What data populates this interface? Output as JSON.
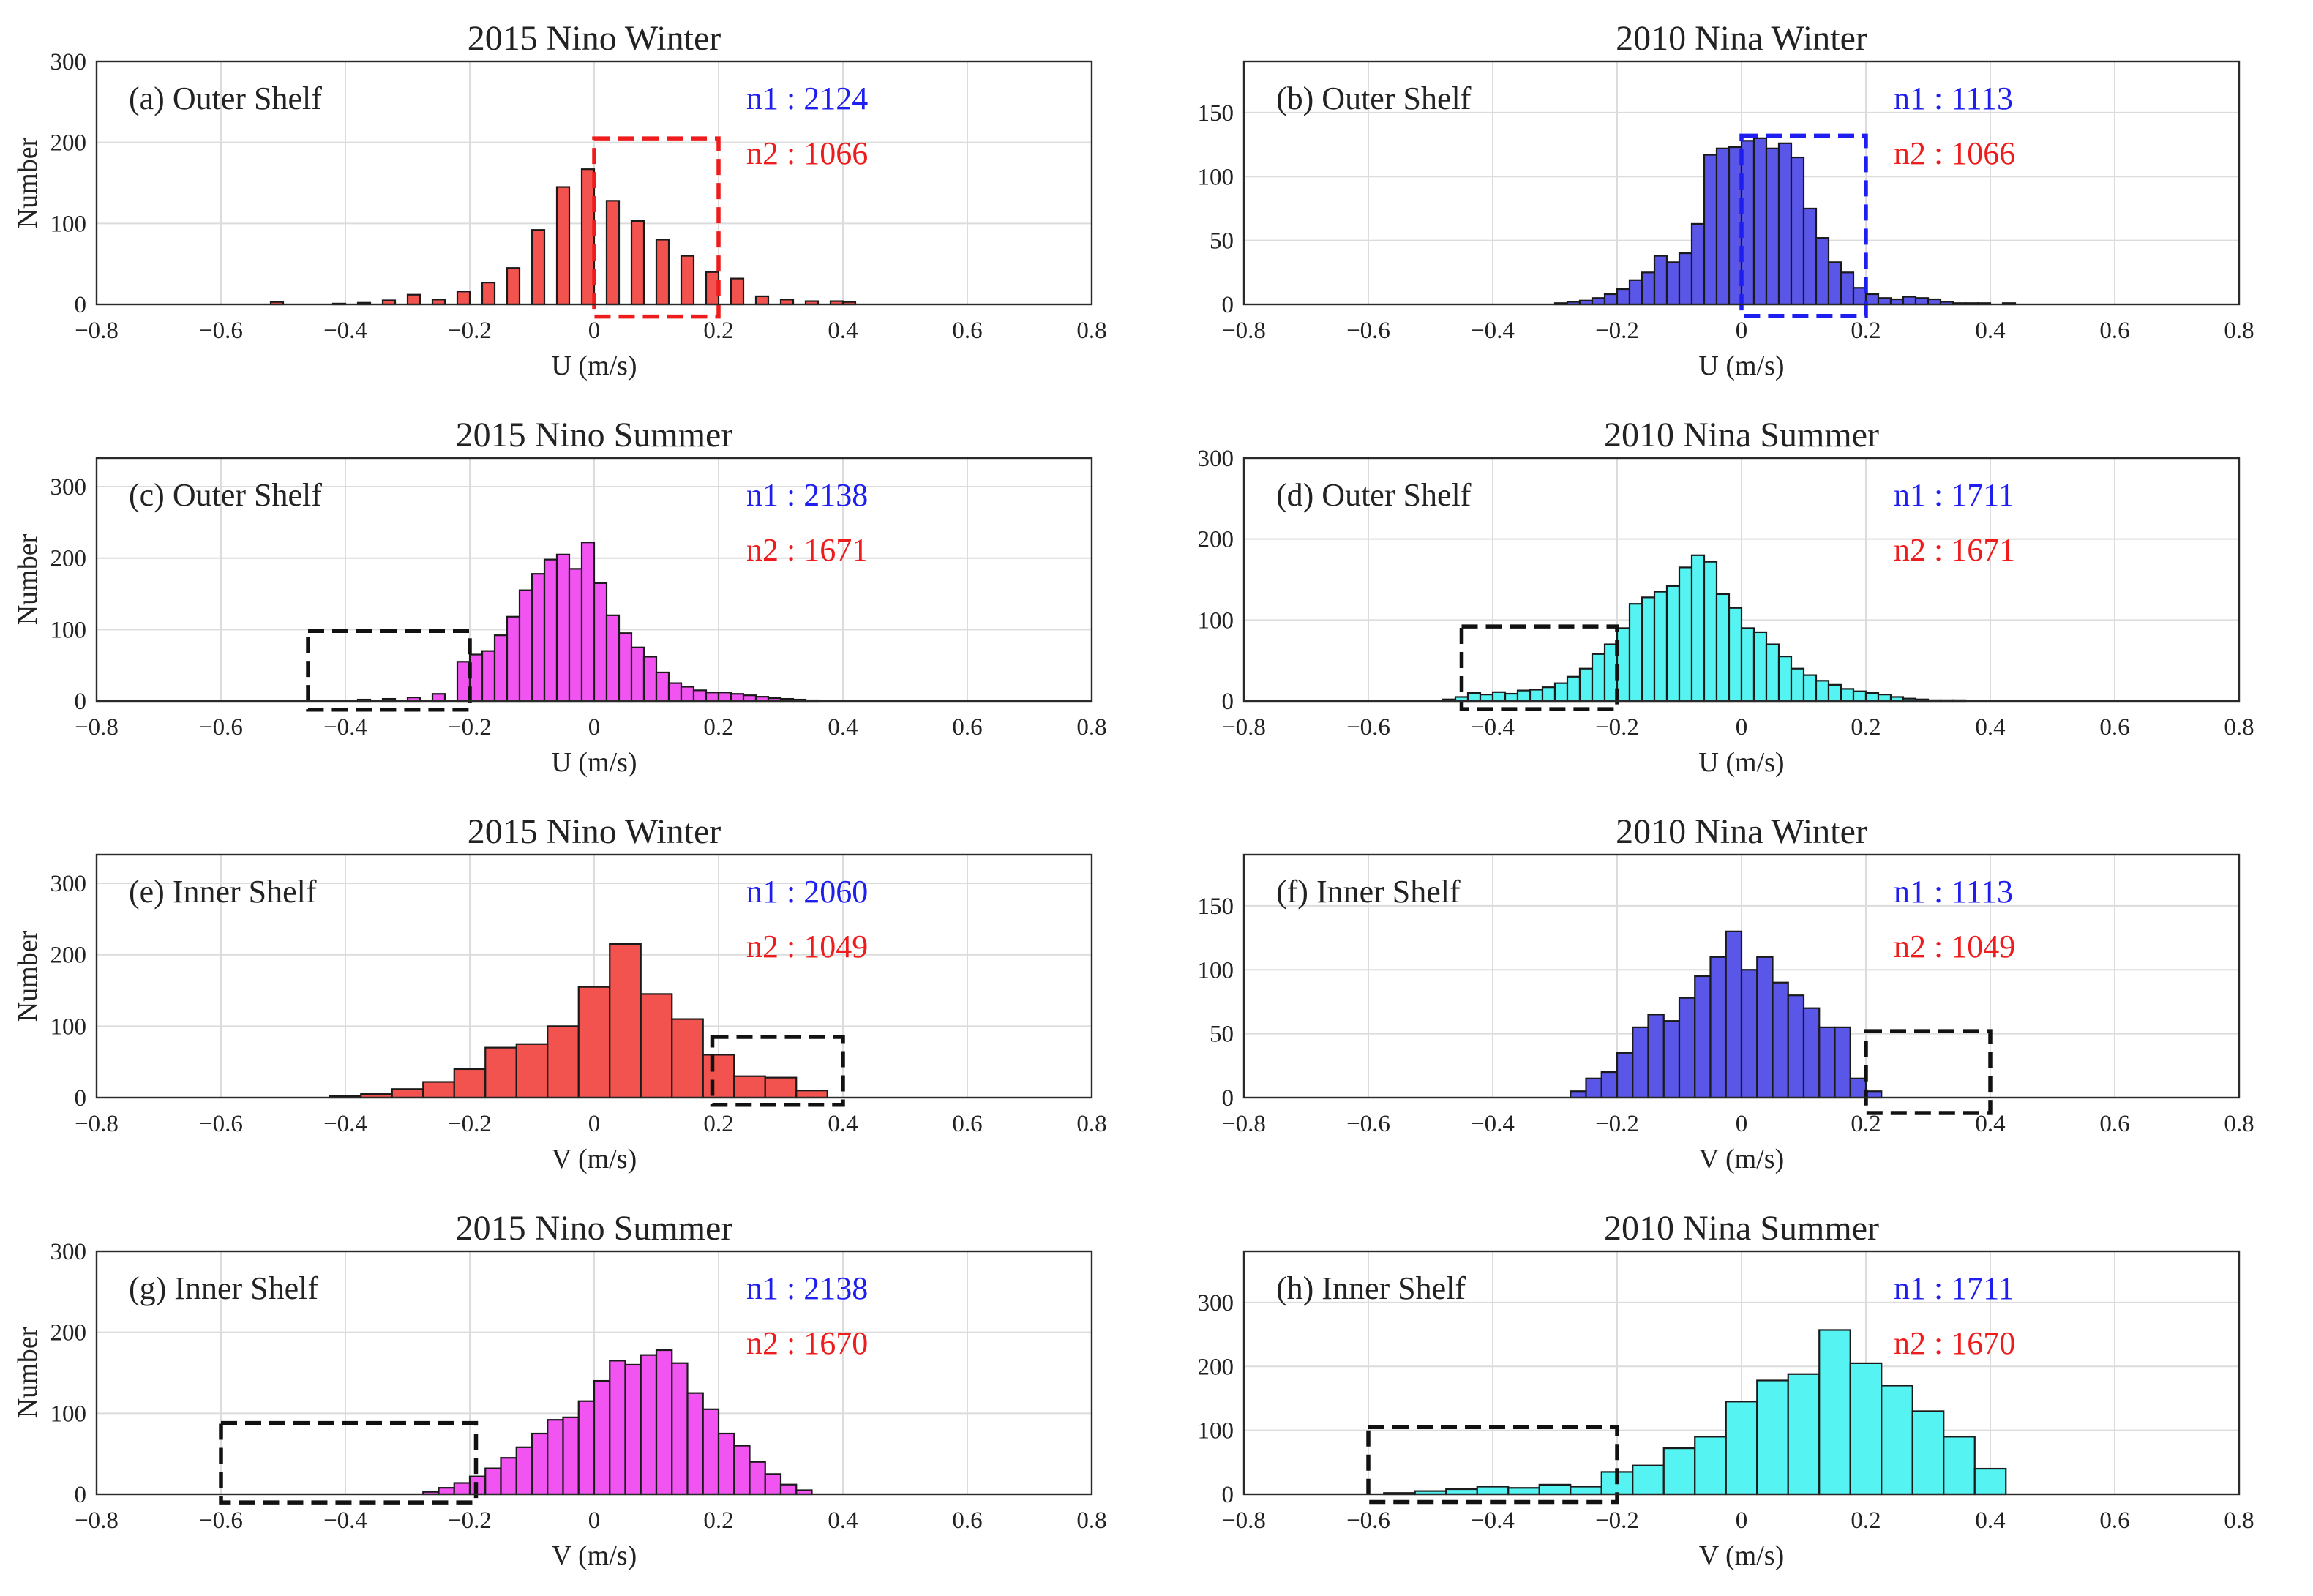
{
  "colors": {
    "nino_winter": "#f2534f",
    "nina_winter": "#5a56e8",
    "nino_summer": "#f254f2",
    "nina_summer": "#55f4f2",
    "n1_text": "#1e1ef0",
    "n2_text": "#ee1c1c",
    "box_red": "#ee1c1c",
    "box_blue": "#1e1ef0",
    "box_black": "#111111"
  },
  "chart_data": [
    {
      "type": "bar",
      "id": "a",
      "title": "2015 Nino Winter",
      "label": "(a)  Outer Shelf",
      "n1": "n1 : 2124",
      "n2": "n2 : 1066",
      "xlabel": "U (m/s)",
      "ylabel": "Number",
      "xlim": [
        -0.8,
        0.8
      ],
      "ylim": [
        0,
        300
      ],
      "xticks": [
        "−0.8",
        "−0.6",
        "−0.4",
        "−0.2",
        "0",
        "0.2",
        "0.4",
        "0.6",
        "0.8"
      ],
      "yticks": [
        "0",
        "100",
        "200",
        "300"
      ],
      "color_key": "nino_winter",
      "bin_width": 0.02,
      "bin_centers": [
        -0.51,
        -0.41,
        -0.37,
        -0.33,
        -0.29,
        -0.25,
        -0.21,
        -0.17,
        -0.13,
        -0.09,
        -0.05,
        -0.01,
        0.03,
        0.07,
        0.11,
        0.15,
        0.19,
        0.23,
        0.27,
        0.31,
        0.35,
        0.39,
        0.41
      ],
      "values": [
        3,
        1,
        2,
        5,
        12,
        6,
        16,
        27,
        45,
        92,
        145,
        167,
        128,
        103,
        80,
        60,
        40,
        32,
        10,
        6,
        4,
        4,
        3
      ],
      "region": {
        "x": [
          0.0,
          0.2
        ],
        "y": [
          -15,
          205
        ],
        "color_key": "box_red"
      }
    },
    {
      "type": "bar",
      "id": "b",
      "title": "2010 Nina Winter",
      "label": "(b)  Outer Shelf",
      "n1": "n1 : 1113",
      "n2": "n2 : 1066",
      "xlabel": "U (m/s)",
      "ylabel": "",
      "xlim": [
        -0.8,
        0.8
      ],
      "ylim": [
        0,
        190
      ],
      "xticks": [
        "−0.8",
        "−0.6",
        "−0.4",
        "−0.2",
        "0",
        "0.2",
        "0.4",
        "0.6",
        "0.8"
      ],
      "yticks": [
        "0",
        "50",
        "100",
        "150"
      ],
      "color_key": "nina_winter",
      "bin_width": 0.02,
      "bin_centers": [
        -0.29,
        -0.27,
        -0.25,
        -0.23,
        -0.21,
        -0.19,
        -0.17,
        -0.15,
        -0.13,
        -0.11,
        -0.09,
        -0.07,
        -0.05,
        -0.03,
        -0.01,
        0.01,
        0.03,
        0.05,
        0.07,
        0.09,
        0.11,
        0.13,
        0.15,
        0.17,
        0.19,
        0.21,
        0.23,
        0.25,
        0.27,
        0.29,
        0.31,
        0.33,
        0.35,
        0.37,
        0.39,
        0.41,
        0.43
      ],
      "values": [
        1,
        2,
        3,
        5,
        8,
        12,
        19,
        25,
        38,
        33,
        40,
        63,
        117,
        122,
        123,
        128,
        130,
        122,
        126,
        115,
        75,
        52,
        33,
        25,
        13,
        8,
        5,
        4,
        6,
        5,
        4,
        2,
        1,
        1,
        1,
        0,
        1
      ],
      "region": {
        "x": [
          0.0,
          0.2
        ],
        "y": [
          -9,
          132
        ],
        "color_key": "box_blue"
      }
    },
    {
      "type": "bar",
      "id": "c",
      "title": "2015 Nino Summer",
      "label": "(c)  Outer Shelf",
      "n1": "n1 : 2138",
      "n2": "n2 : 1671",
      "xlabel": "U (m/s)",
      "ylabel": "Number",
      "xlim": [
        -0.8,
        0.8
      ],
      "ylim": [
        0,
        340
      ],
      "xticks": [
        "−0.8",
        "−0.6",
        "−0.4",
        "−0.2",
        "0",
        "0.2",
        "0.4",
        "0.6",
        "0.8"
      ],
      "yticks": [
        "0",
        "100",
        "200",
        "300"
      ],
      "color_key": "nino_summer",
      "bin_width": 0.02,
      "bin_centers": [
        -0.37,
        -0.33,
        -0.29,
        -0.25,
        -0.21,
        -0.19,
        -0.17,
        -0.15,
        -0.13,
        -0.11,
        -0.09,
        -0.07,
        -0.05,
        -0.03,
        -0.01,
        0.01,
        0.03,
        0.05,
        0.07,
        0.09,
        0.11,
        0.13,
        0.15,
        0.17,
        0.19,
        0.21,
        0.23,
        0.25,
        0.27,
        0.29,
        0.31,
        0.33,
        0.35
      ],
      "values": [
        2,
        3,
        5,
        10,
        55,
        65,
        70,
        92,
        118,
        155,
        178,
        198,
        205,
        185,
        222,
        165,
        120,
        95,
        75,
        62,
        40,
        25,
        20,
        15,
        12,
        12,
        10,
        8,
        6,
        4,
        3,
        2,
        1
      ],
      "region": {
        "x": [
          -0.46,
          -0.2
        ],
        "y": [
          -12,
          98
        ],
        "color_key": "box_black"
      }
    },
    {
      "type": "bar",
      "id": "d",
      "title": "2010 Nina Summer",
      "label": "(d)  Outer Shelf",
      "n1": "n1 : 1711",
      "n2": "n2 : 1671",
      "xlabel": "U (m/s)",
      "ylabel": "",
      "xlim": [
        -0.8,
        0.8
      ],
      "ylim": [
        0,
        300
      ],
      "xticks": [
        "−0.8",
        "−0.6",
        "−0.4",
        "−0.2",
        "0",
        "0.2",
        "0.4",
        "0.6",
        "0.8"
      ],
      "yticks": [
        "0",
        "100",
        "200",
        "300"
      ],
      "color_key": "nina_summer",
      "bin_width": 0.02,
      "bin_centers": [
        -0.47,
        -0.45,
        -0.43,
        -0.41,
        -0.39,
        -0.37,
        -0.35,
        -0.33,
        -0.31,
        -0.29,
        -0.27,
        -0.25,
        -0.23,
        -0.21,
        -0.19,
        -0.17,
        -0.15,
        -0.13,
        -0.11,
        -0.09,
        -0.07,
        -0.05,
        -0.03,
        -0.01,
        0.01,
        0.03,
        0.05,
        0.07,
        0.09,
        0.11,
        0.13,
        0.15,
        0.17,
        0.19,
        0.21,
        0.23,
        0.25,
        0.27,
        0.29,
        0.31,
        0.33,
        0.35
      ],
      "values": [
        2,
        5,
        10,
        8,
        11,
        9,
        13,
        14,
        17,
        22,
        30,
        40,
        58,
        70,
        90,
        120,
        128,
        135,
        142,
        165,
        180,
        172,
        132,
        115,
        90,
        85,
        70,
        55,
        40,
        32,
        25,
        20,
        15,
        12,
        10,
        8,
        5,
        3,
        2,
        1,
        1,
        1
      ],
      "region": {
        "x": [
          -0.45,
          -0.2
        ],
        "y": [
          -10,
          92
        ],
        "color_key": "box_black"
      }
    },
    {
      "type": "bar",
      "id": "e",
      "title": "2015 Nino Winter",
      "label": "(e)  Inner Shelf",
      "n1": "n1 : 2060",
      "n2": "n2 : 1049",
      "xlabel": "V (m/s)",
      "ylabel": "Number",
      "xlim": [
        -0.8,
        0.8
      ],
      "ylim": [
        0,
        340
      ],
      "xticks": [
        "−0.8",
        "−0.6",
        "−0.4",
        "−0.2",
        "0",
        "0.2",
        "0.4",
        "0.6",
        "0.8"
      ],
      "yticks": [
        "0",
        "100",
        "200",
        "300"
      ],
      "color_key": "nino_winter",
      "bin_width": 0.05,
      "bin_centers": [
        -0.4,
        -0.35,
        -0.3,
        -0.25,
        -0.2,
        -0.15,
        -0.1,
        -0.05,
        0.0,
        0.05,
        0.1,
        0.15,
        0.2,
        0.25,
        0.3,
        0.35
      ],
      "values": [
        2,
        5,
        12,
        22,
        40,
        70,
        75,
        100,
        155,
        215,
        145,
        110,
        60,
        30,
        28,
        10
      ],
      "region": {
        "x": [
          0.19,
          0.4
        ],
        "y": [
          -10,
          85
        ],
        "color_key": "box_black"
      }
    },
    {
      "type": "bar",
      "id": "f",
      "title": "2010 Nina Winter",
      "label": "(f)  Inner Shelf",
      "n1": "n1 : 1113",
      "n2": "n2 : 1049",
      "xlabel": "V (m/s)",
      "ylabel": "",
      "xlim": [
        -0.8,
        0.8
      ],
      "ylim": [
        0,
        190
      ],
      "xticks": [
        "−0.8",
        "−0.6",
        "−0.4",
        "−0.2",
        "0",
        "0.2",
        "0.4",
        "0.6",
        "0.8"
      ],
      "yticks": [
        "0",
        "50",
        "100",
        "150"
      ],
      "color_key": "nina_winter",
      "bin_width": 0.025,
      "bin_centers": [
        -0.2625,
        -0.2375,
        -0.2125,
        -0.1875,
        -0.1625,
        -0.1375,
        -0.1125,
        -0.0875,
        -0.0625,
        -0.0375,
        -0.0125,
        0.0125,
        0.0375,
        0.0625,
        0.0875,
        0.1125,
        0.1375,
        0.1625,
        0.1875,
        0.2125
      ],
      "values": [
        5,
        15,
        20,
        35,
        55,
        65,
        60,
        78,
        95,
        110,
        130,
        100,
        110,
        90,
        80,
        70,
        55,
        55,
        15,
        5
      ],
      "region": {
        "x": [
          0.2,
          0.4
        ],
        "y": [
          -12,
          52
        ],
        "color_key": "box_black"
      }
    },
    {
      "type": "bar",
      "id": "g",
      "title": "2015 Nino Summer",
      "label": "(g)  Inner Shelf",
      "n1": "n1 : 2138",
      "n2": "n2 : 1670",
      "xlabel": "V (m/s)",
      "ylabel": "Number",
      "xlim": [
        -0.8,
        0.8
      ],
      "ylim": [
        0,
        300
      ],
      "xticks": [
        "−0.8",
        "−0.6",
        "−0.4",
        "−0.2",
        "0",
        "0.2",
        "0.4",
        "0.6",
        "0.8"
      ],
      "yticks": [
        "0",
        "100",
        "200",
        "300"
      ],
      "color_key": "nino_summer",
      "bin_width": 0.025,
      "bin_centers": [
        -0.2625,
        -0.2375,
        -0.2125,
        -0.1875,
        -0.1625,
        -0.1375,
        -0.1125,
        -0.0875,
        -0.0625,
        -0.0375,
        -0.0125,
        0.0125,
        0.0375,
        0.0625,
        0.0875,
        0.1125,
        0.1375,
        0.1625,
        0.1875,
        0.2125,
        0.2375,
        0.2625,
        0.2875,
        0.3125,
        0.3375
      ],
      "values": [
        3,
        8,
        14,
        22,
        32,
        45,
        58,
        75,
        92,
        95,
        115,
        140,
        165,
        160,
        172,
        178,
        162,
        125,
        105,
        75,
        60,
        40,
        25,
        12,
        5
      ],
      "region": {
        "x": [
          -0.6,
          -0.19
        ],
        "y": [
          -10,
          88
        ],
        "color_key": "box_black"
      }
    },
    {
      "type": "bar",
      "id": "h",
      "title": "2010 Nina Summer",
      "label": "(h)  Inner Shelf",
      "n1": "n1 : 1711",
      "n2": "n2 : 1670",
      "xlabel": "V (m/s)",
      "ylabel": "",
      "xlim": [
        -0.8,
        0.8
      ],
      "ylim": [
        0,
        380
      ],
      "xticks": [
        "−0.8",
        "−0.6",
        "−0.4",
        "−0.2",
        "0",
        "0.2",
        "0.4",
        "0.6",
        "0.8"
      ],
      "yticks": [
        "0",
        "100",
        "200",
        "300"
      ],
      "color_key": "nina_summer",
      "bin_width": 0.05,
      "bin_centers": [
        -0.55,
        -0.5,
        -0.45,
        -0.4,
        -0.35,
        -0.3,
        -0.25,
        -0.2,
        -0.15,
        -0.1,
        -0.05,
        0.0,
        0.05,
        0.1,
        0.15,
        0.2,
        0.25,
        0.3,
        0.35,
        0.4
      ],
      "values": [
        2,
        5,
        8,
        12,
        10,
        15,
        12,
        35,
        45,
        72,
        90,
        145,
        178,
        188,
        257,
        205,
        170,
        130,
        90,
        40
      ],
      "region": {
        "x": [
          -0.6,
          -0.2
        ],
        "y": [
          -12,
          105
        ],
        "color_key": "box_black"
      }
    }
  ]
}
